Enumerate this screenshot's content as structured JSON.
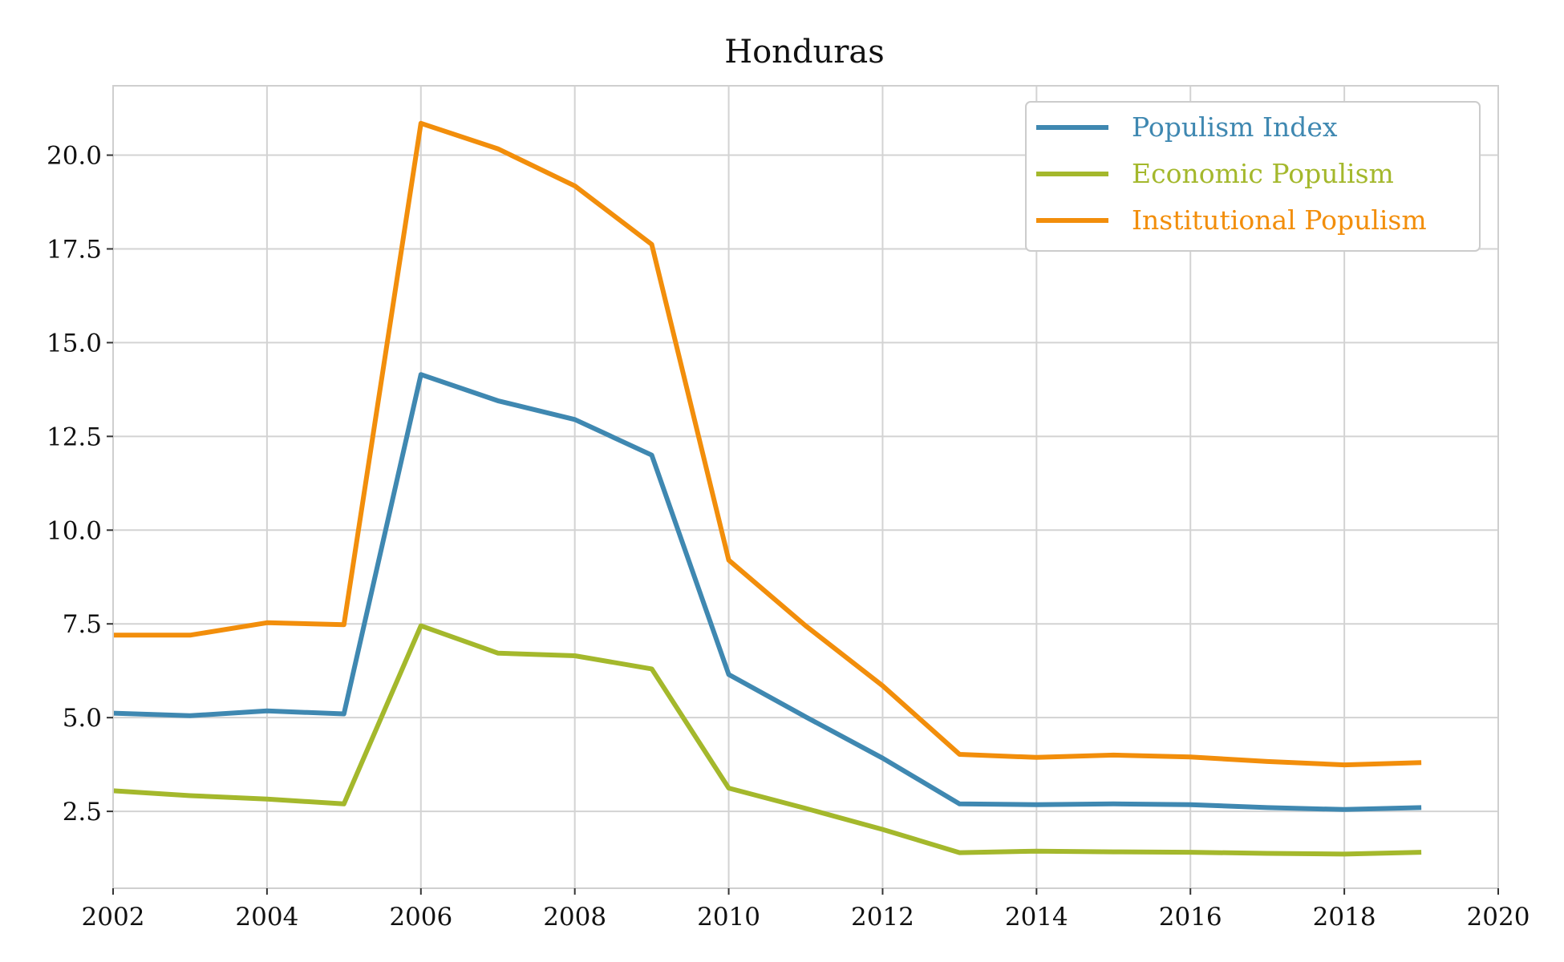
{
  "chart_data": {
    "type": "line",
    "title": "Honduras",
    "xlabel": "",
    "ylabel": "",
    "xlim": [
      2002,
      2020
    ],
    "ylim": [
      0.45,
      21.85
    ],
    "x_ticks": [
      2002,
      2004,
      2006,
      2008,
      2010,
      2012,
      2014,
      2016,
      2018,
      2020
    ],
    "y_ticks": [
      2.5,
      5.0,
      7.5,
      10.0,
      12.5,
      15.0,
      17.5,
      20.0
    ],
    "x_tick_labels": [
      "2002",
      "2004",
      "2006",
      "2008",
      "2010",
      "2012",
      "2014",
      "2016",
      "2018",
      "2020"
    ],
    "y_tick_labels": [
      "2.5",
      "5.0",
      "7.5",
      "10.0",
      "12.5",
      "15.0",
      "17.5",
      "20.0"
    ],
    "grid": true,
    "legend_position": "top-right",
    "x": [
      2002,
      2003,
      2004,
      2005,
      2006,
      2007,
      2008,
      2009,
      2010,
      2011,
      2012,
      2013,
      2014,
      2015,
      2016,
      2017,
      2018,
      2019
    ],
    "series": [
      {
        "name": "Populism Index",
        "color": "#3f88b1",
        "values": [
          5.12,
          5.05,
          5.18,
          5.1,
          14.15,
          13.45,
          12.95,
          12.0,
          6.15,
          5.02,
          3.92,
          2.7,
          2.68,
          2.7,
          2.68,
          2.6,
          2.55,
          2.6
        ]
      },
      {
        "name": "Economic Populism",
        "color": "#a4b82c",
        "values": [
          3.05,
          2.92,
          2.83,
          2.7,
          7.45,
          6.72,
          6.65,
          6.3,
          3.12,
          2.58,
          2.02,
          1.4,
          1.44,
          1.42,
          1.41,
          1.38,
          1.36,
          1.41
        ]
      },
      {
        "name": "Institutional Populism",
        "color": "#f28e0b",
        "values": [
          7.2,
          7.2,
          7.53,
          7.48,
          20.85,
          20.17,
          19.18,
          17.62,
          9.2,
          7.45,
          5.85,
          4.02,
          3.94,
          4.0,
          3.95,
          3.83,
          3.74,
          3.8
        ]
      }
    ]
  }
}
